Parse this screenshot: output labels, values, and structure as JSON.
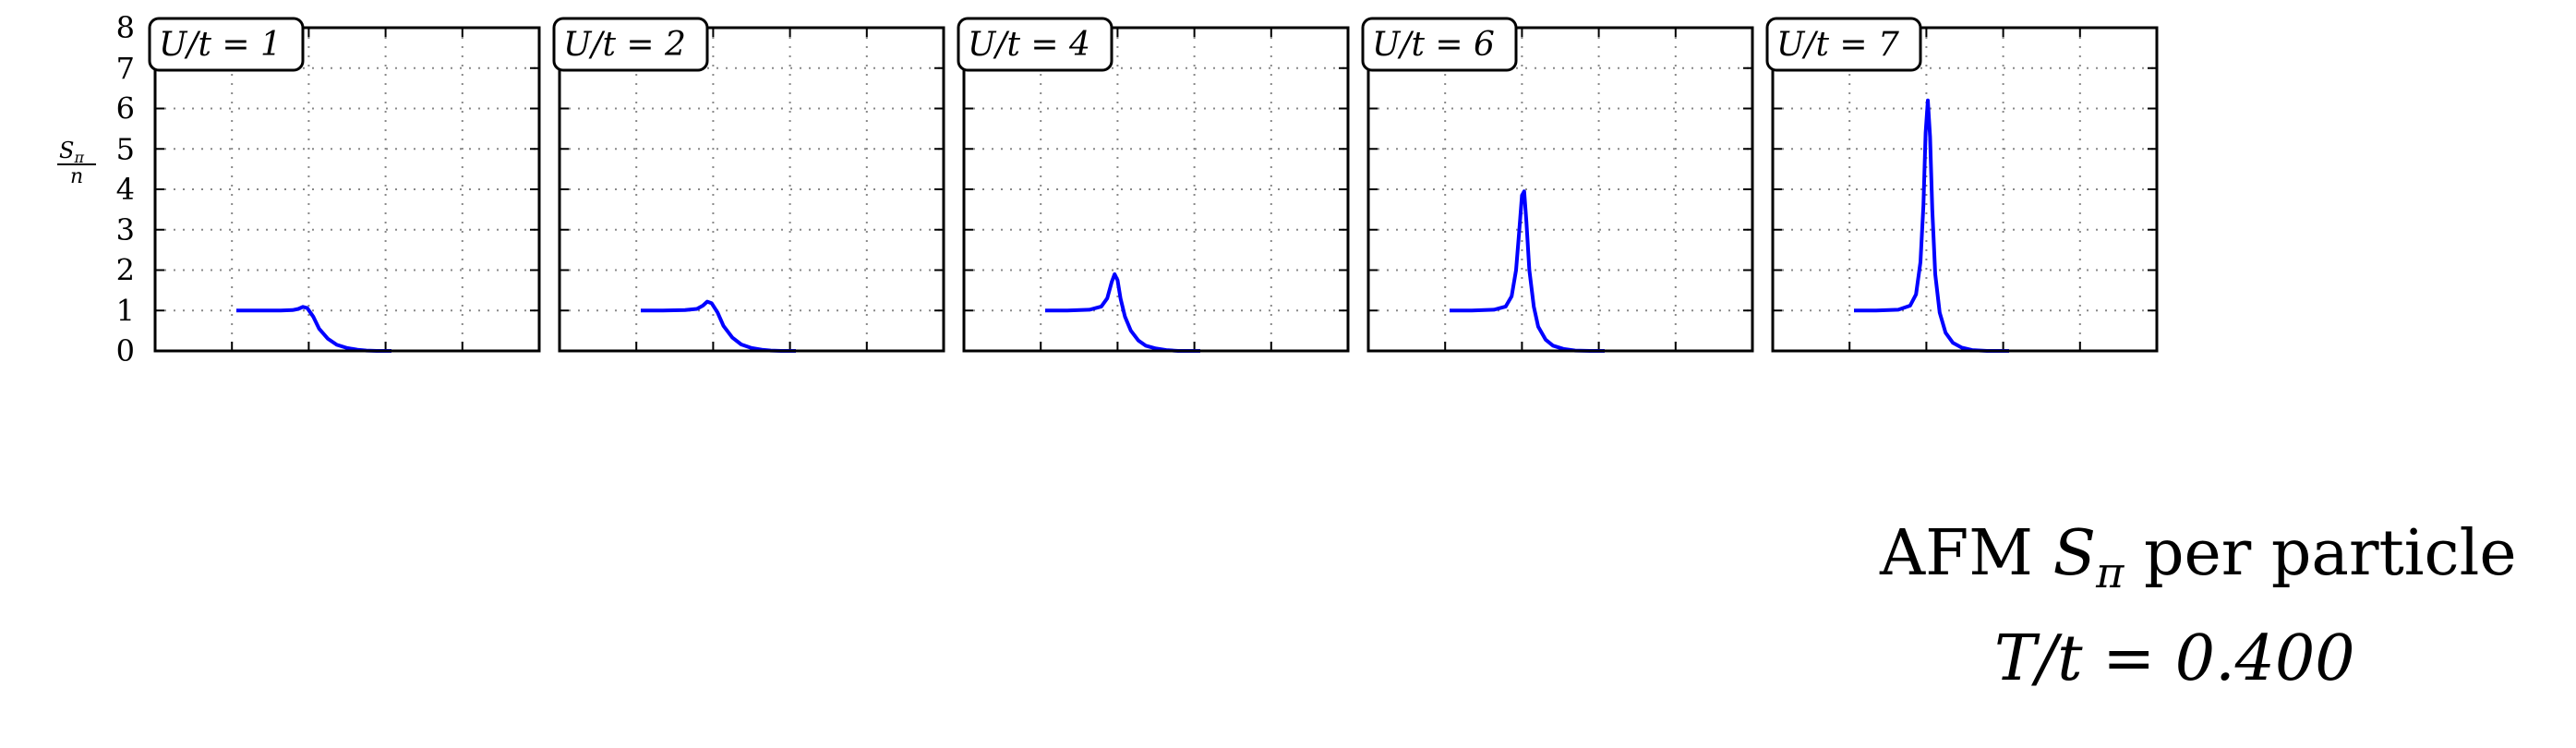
{
  "figure": {
    "title_line1": "AFM",
    "title_symbol": "S",
    "title_sub": "π",
    "title_rest": "per particle",
    "title_line2": "T/t = 0.400",
    "ylabel_num": "S",
    "ylabel_sub": "π",
    "ylabel_den": "n"
  },
  "chart_data": [
    {
      "type": "line",
      "label": "U/t = 1",
      "x": [
        0.0,
        0.15,
        0.3,
        0.38,
        0.42,
        0.45,
        0.48,
        0.52,
        0.56,
        0.62,
        0.68,
        0.75,
        0.82,
        0.88,
        0.95,
        1.05
      ],
      "y": [
        1.0,
        1.0,
        1.0,
        1.01,
        1.04,
        1.09,
        1.06,
        0.85,
        0.55,
        0.3,
        0.15,
        0.07,
        0.03,
        0.01,
        0.0,
        0.0
      ],
      "ylim": [
        0,
        8
      ],
      "grid": true
    },
    {
      "type": "line",
      "label": "U/t = 2",
      "x": [
        0.0,
        0.15,
        0.3,
        0.38,
        0.42,
        0.45,
        0.48,
        0.52,
        0.56,
        0.62,
        0.68,
        0.75,
        0.82,
        0.88,
        0.95,
        1.05
      ],
      "y": [
        1.0,
        1.0,
        1.01,
        1.04,
        1.12,
        1.22,
        1.18,
        0.95,
        0.62,
        0.33,
        0.16,
        0.07,
        0.03,
        0.01,
        0.0,
        0.0
      ],
      "ylim": [
        0,
        8
      ],
      "grid": true
    },
    {
      "type": "line",
      "label": "U/t = 4",
      "x": [
        0.0,
        0.15,
        0.3,
        0.38,
        0.42,
        0.45,
        0.47,
        0.49,
        0.51,
        0.54,
        0.58,
        0.63,
        0.68,
        0.75,
        0.82,
        0.9,
        1.05
      ],
      "y": [
        1.0,
        1.0,
        1.02,
        1.1,
        1.3,
        1.7,
        1.9,
        1.75,
        1.3,
        0.85,
        0.5,
        0.26,
        0.13,
        0.06,
        0.02,
        0.0,
        0.0
      ],
      "ylim": [
        0,
        8
      ],
      "grid": true
    },
    {
      "type": "line",
      "label": "U/t = 6",
      "x": [
        0.0,
        0.15,
        0.3,
        0.38,
        0.42,
        0.45,
        0.47,
        0.49,
        0.505,
        0.52,
        0.54,
        0.57,
        0.6,
        0.65,
        0.7,
        0.77,
        0.85,
        0.95,
        1.05
      ],
      "y": [
        1.0,
        1.0,
        1.02,
        1.1,
        1.35,
        2.0,
        2.9,
        3.85,
        3.95,
        3.2,
        2.0,
        1.1,
        0.6,
        0.28,
        0.13,
        0.05,
        0.01,
        0.0,
        0.0
      ],
      "ylim": [
        0,
        8
      ],
      "grid": true
    },
    {
      "type": "line",
      "label": "U/t = 7",
      "x": [
        0.0,
        0.15,
        0.3,
        0.38,
        0.42,
        0.45,
        0.47,
        0.485,
        0.5,
        0.515,
        0.53,
        0.55,
        0.58,
        0.62,
        0.67,
        0.73,
        0.8,
        0.9,
        1.05
      ],
      "y": [
        1.0,
        1.0,
        1.02,
        1.12,
        1.4,
        2.2,
        3.6,
        5.4,
        6.2,
        5.3,
        3.5,
        1.9,
        0.95,
        0.45,
        0.2,
        0.08,
        0.02,
        0.0,
        0.0
      ],
      "ylim": [
        0,
        8
      ],
      "grid": true
    }
  ],
  "axis": {
    "yticks": [
      "0",
      "1",
      "2",
      "3",
      "4",
      "5",
      "6",
      "7",
      "8"
    ],
    "line_color": "#0000ff"
  }
}
